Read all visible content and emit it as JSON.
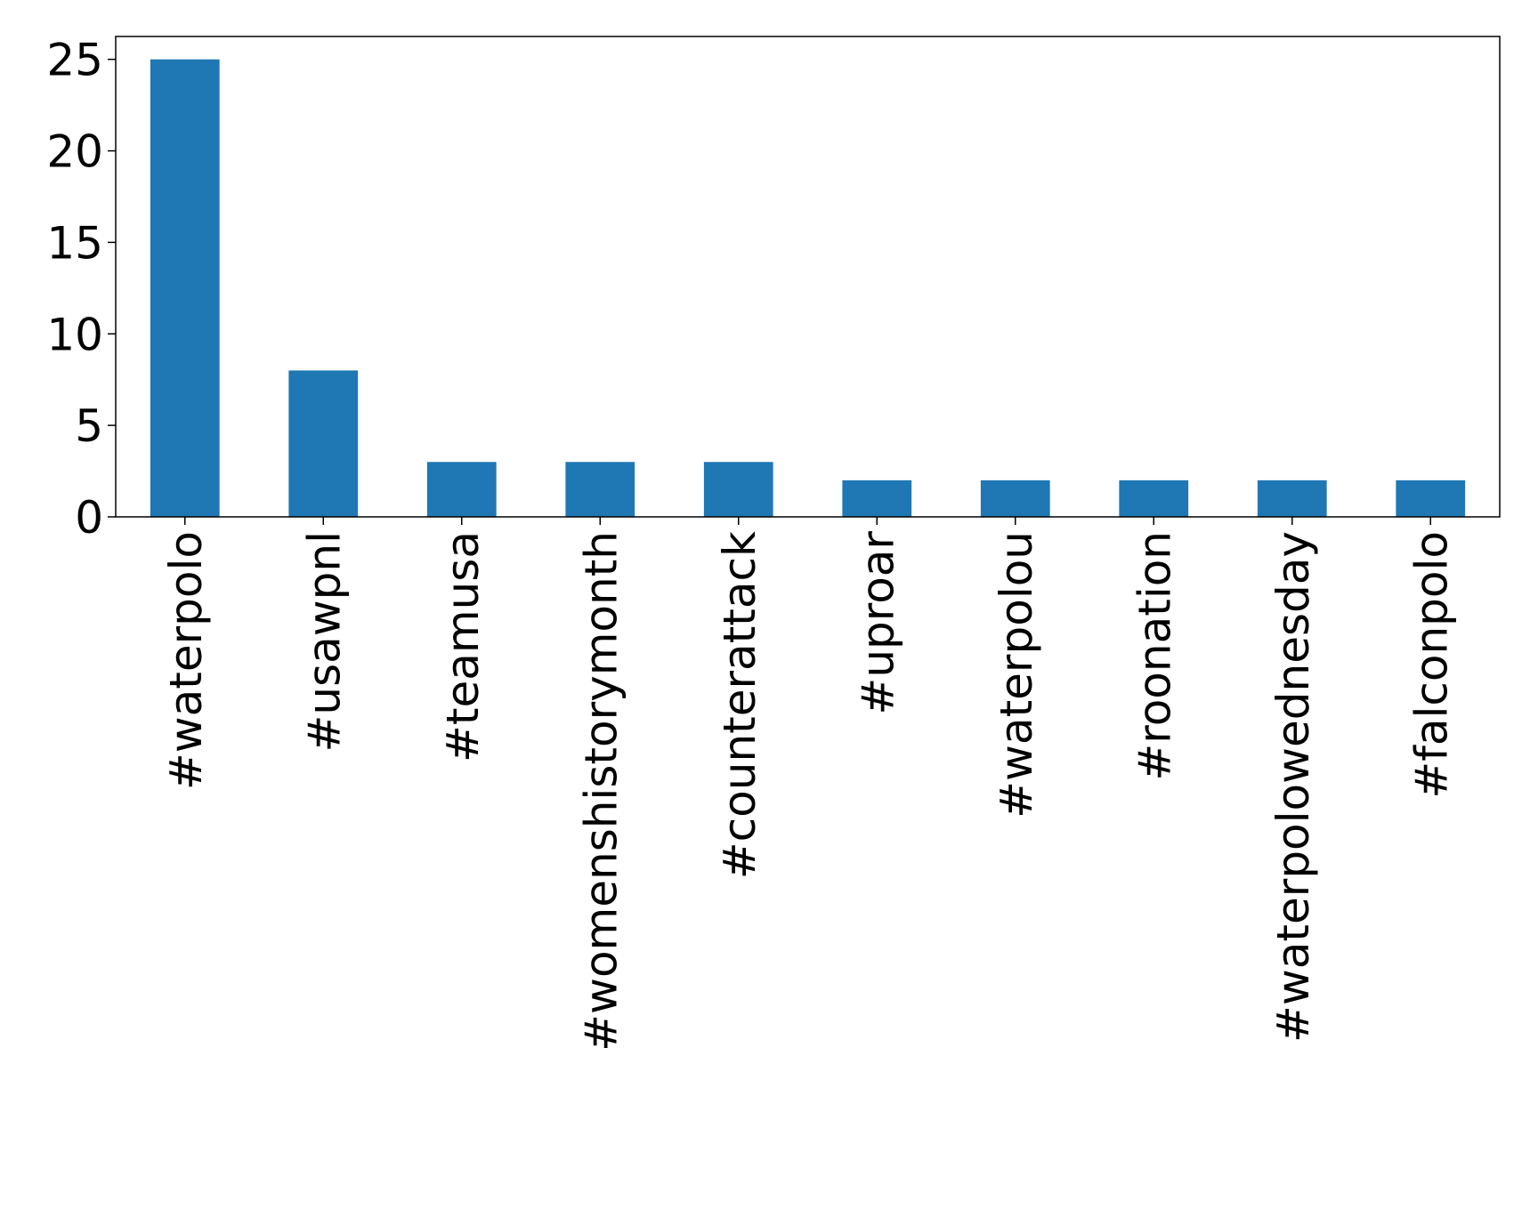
{
  "chart_data": {
    "type": "bar",
    "categories": [
      "#waterpolo",
      "#usawpnl",
      "#teamusa",
      "#womenshistorymonth",
      "#counterattack",
      "#uproar",
      "#waterpolou",
      "#roonation",
      "#waterpolowednesday",
      "#falconpolo"
    ],
    "values": [
      25,
      8,
      3,
      3,
      3,
      2,
      2,
      2,
      2,
      2
    ],
    "color": "#1f77b4",
    "ylim": [
      0,
      26.25
    ],
    "yticks": [
      0,
      5,
      10,
      15,
      20,
      25
    ],
    "grid": false
  }
}
